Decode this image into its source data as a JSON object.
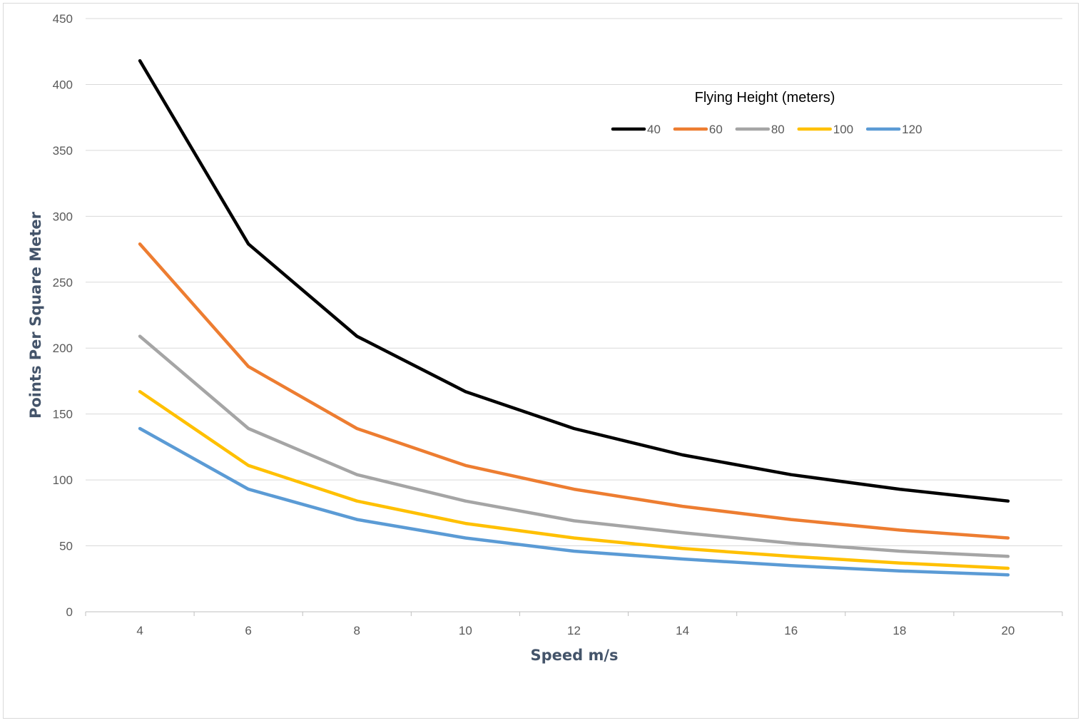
{
  "chart_data": {
    "type": "line",
    "title": "",
    "xlabel": "Speed m/s",
    "ylabel": "Points Per Square Meter",
    "x": [
      4,
      6,
      8,
      10,
      12,
      14,
      16,
      18,
      20
    ],
    "ylim": [
      0,
      450
    ],
    "yticks": [
      0,
      50,
      100,
      150,
      200,
      250,
      300,
      350,
      400,
      450
    ],
    "grid": true,
    "legend": {
      "title": "Flying Height (meters)",
      "placement": "top-right"
    },
    "series": [
      {
        "name": "40",
        "color": "#000000",
        "values": [
          418,
          279,
          209,
          167,
          139,
          119,
          104,
          93,
          84
        ]
      },
      {
        "name": "60",
        "color": "#ed7d31",
        "values": [
          279,
          186,
          139,
          111,
          93,
          80,
          70,
          62,
          56
        ]
      },
      {
        "name": "80",
        "color": "#a5a5a5",
        "values": [
          209,
          139,
          104,
          84,
          69,
          60,
          52,
          46,
          42
        ]
      },
      {
        "name": "100",
        "color": "#ffc000",
        "values": [
          167,
          111,
          84,
          67,
          56,
          48,
          42,
          37,
          33
        ]
      },
      {
        "name": "120",
        "color": "#5b9bd5",
        "values": [
          139,
          93,
          70,
          56,
          46,
          40,
          35,
          31,
          28
        ]
      }
    ]
  }
}
